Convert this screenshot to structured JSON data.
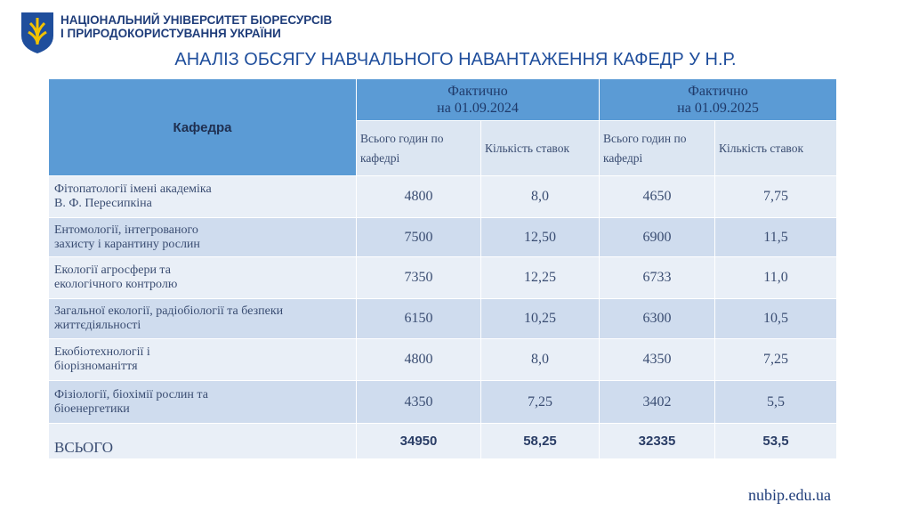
{
  "header": {
    "org_lines": [
      "НАЦІОНАЛЬНИЙ УНІВЕРСИТЕТ БІОРЕСУРСІВ",
      "І ПРИРОДОКОРИСТУВАННЯ УКРАЇНИ"
    ],
    "title": "АНАЛІЗ ОБСЯГУ НАВЧАЛЬНОГО НАВАНТАЖЕННЯ КАФЕДР У Н.Р."
  },
  "table": {
    "department_header": "Кафедра",
    "groups": [
      [
        "Фактично",
        "на 01.09.2024"
      ],
      [
        "Фактично",
        "на 01.09.2025"
      ]
    ],
    "subheaders": [
      "Всього годин по кафедрі",
      "Кількість ставок",
      "Всього годин по кафедрі",
      "Кількість ставок"
    ],
    "rows": [
      {
        "department": [
          "Фітопатології імені академіка",
          "В. Ф. Пересипкіна"
        ],
        "values": [
          "4800",
          "8,0",
          "4650",
          "7,75"
        ]
      },
      {
        "department": [
          "Ентомології, інтегрованого",
          "захисту і карантину рослин"
        ],
        "values": [
          "7500",
          "12,50",
          "6900",
          "11,5"
        ]
      },
      {
        "department": [
          "Екології агросфери та",
          "екологічного контролю"
        ],
        "values": [
          "7350",
          "12,25",
          "6733",
          "11,0"
        ]
      },
      {
        "department": [
          "Загальної екології, радіобіології та безпеки",
          "життєдіяльності"
        ],
        "values": [
          "6150",
          "10,25",
          "6300",
          "10,5"
        ]
      },
      {
        "department": [
          "Екобіотехнології і",
          "біорізноманіття"
        ],
        "values": [
          "4800",
          "8,0",
          "4350",
          "7,25"
        ]
      },
      {
        "department": [
          "Фізіології, біохімії рослин та",
          "біоенергетики"
        ],
        "values": [
          "4350",
          "7,25",
          "3402",
          "5,5"
        ]
      }
    ],
    "total": {
      "label": "ВСЬОГО",
      "values": [
        "34950",
        "58,25",
        "32335",
        "53,5"
      ]
    }
  },
  "footer": {
    "url": "nubip.edu.ua"
  }
}
